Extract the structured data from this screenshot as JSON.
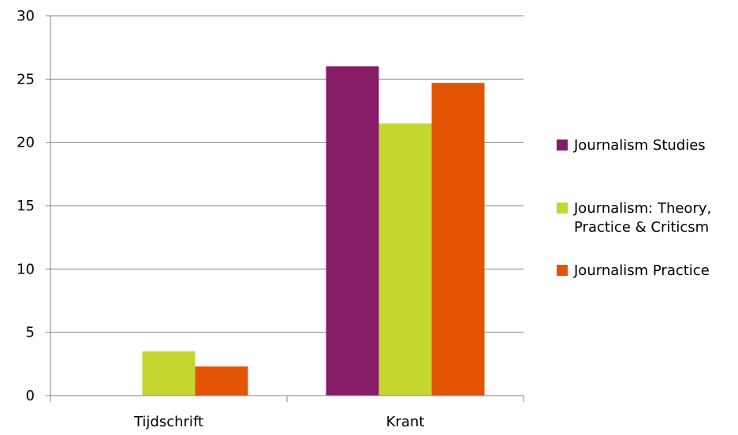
{
  "chart_data": {
    "type": "bar",
    "title": "",
    "xlabel": "",
    "ylabel": "",
    "categories": [
      "Tijdschrift",
      "Krant"
    ],
    "series": [
      {
        "name": "Journalism Studies",
        "values": [
          0,
          26
        ],
        "color": "#861C68"
      },
      {
        "name": "Journalism: Theory, Practice & Criticsm",
        "values": [
          3.5,
          21.5
        ],
        "color": "#C6D630"
      },
      {
        "name": "Journalism Practice",
        "values": [
          2.3,
          24.7
        ],
        "color": "#E35404"
      }
    ],
    "ylim": [
      0,
      30
    ],
    "yticks": [
      "0",
      "5",
      "10",
      "15",
      "20",
      "25",
      "30"
    ],
    "grid": true,
    "legend_position": "right"
  }
}
